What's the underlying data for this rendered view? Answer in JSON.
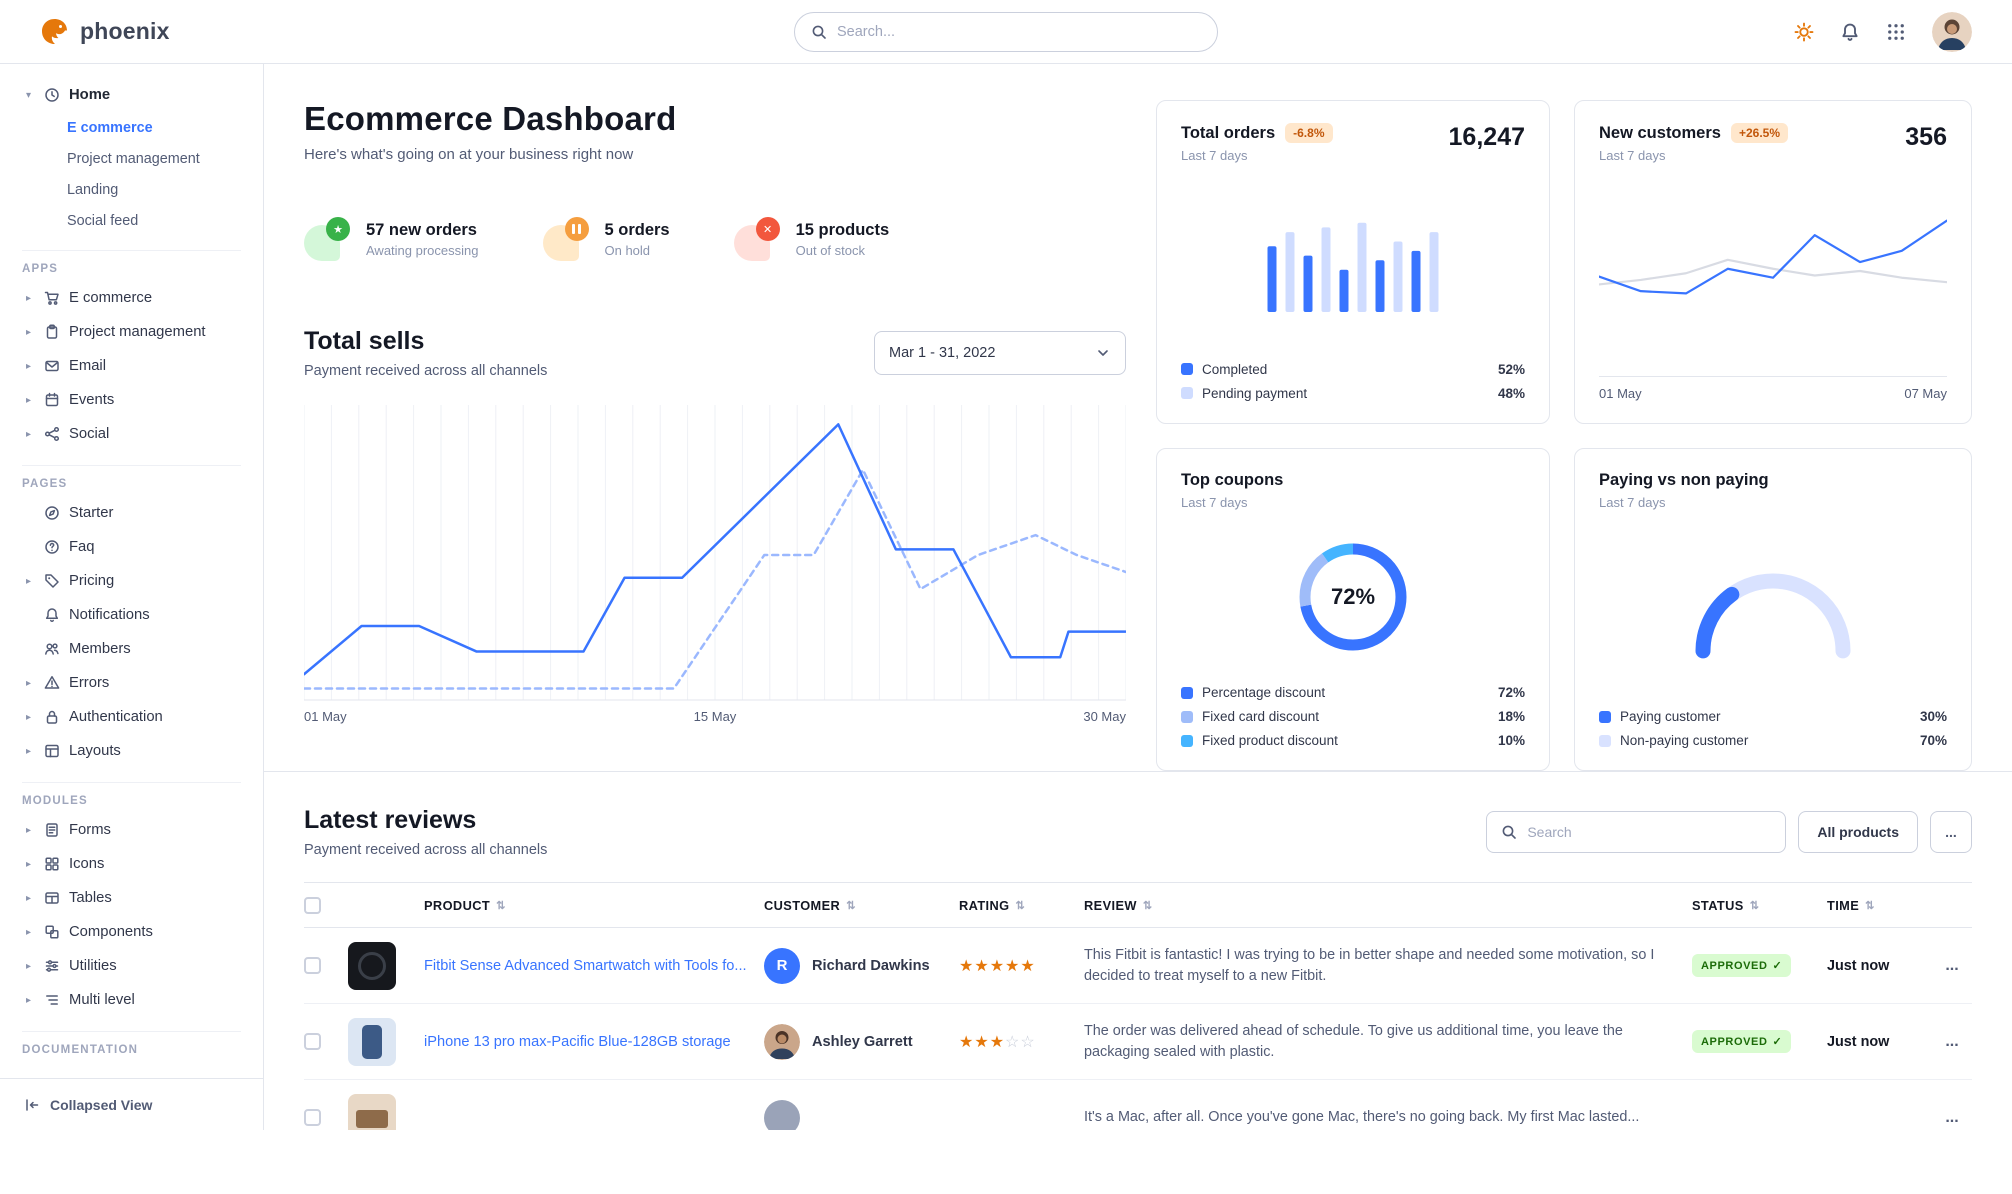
{
  "theme": {
    "primary": "#3874ff",
    "warning_badge_bg": "#ffe7cc",
    "warning_badge_text": "#c2570b",
    "success_badge_bg": "#d9fbd0",
    "success_badge_text": "#1c6c09",
    "star_color": "#e5780b"
  },
  "topbar": {
    "brand": "phoenix",
    "search_placeholder": "Search..."
  },
  "sidebar": {
    "home": {
      "label": "Home",
      "children": [
        {
          "label": "E commerce"
        },
        {
          "label": "Project management"
        },
        {
          "label": "Landing"
        },
        {
          "label": "Social feed"
        }
      ]
    },
    "sections": [
      {
        "title": "APPS",
        "items": [
          {
            "label": "E commerce"
          },
          {
            "label": "Project management"
          },
          {
            "label": "Email"
          },
          {
            "label": "Events"
          },
          {
            "label": "Social"
          }
        ]
      },
      {
        "title": "PAGES",
        "items": [
          {
            "label": "Starter"
          },
          {
            "label": "Faq"
          },
          {
            "label": "Pricing"
          },
          {
            "label": "Notifications"
          },
          {
            "label": "Members"
          },
          {
            "label": "Errors"
          },
          {
            "label": "Authentication"
          },
          {
            "label": "Layouts"
          }
        ]
      },
      {
        "title": "MODULES",
        "items": [
          {
            "label": "Forms"
          },
          {
            "label": "Icons"
          },
          {
            "label": "Tables"
          },
          {
            "label": "Components"
          },
          {
            "label": "Utilities"
          },
          {
            "label": "Multi level"
          }
        ]
      },
      {
        "title": "DOCUMENTATION",
        "items": []
      }
    ],
    "collapsed_view_label": "Collapsed View"
  },
  "header": {
    "title": "Ecommerce Dashboard",
    "subtitle": "Here's what's going on at your business right now"
  },
  "stats": [
    {
      "value": "57 new orders",
      "caption": "Awating processing"
    },
    {
      "value": "5 orders",
      "caption": "On hold"
    },
    {
      "value": "15 products",
      "caption": "Out of stock"
    }
  ],
  "total_sells": {
    "title": "Total sells",
    "subtitle": "Payment received across all channels",
    "range_selector": "Mar 1 - 31, 2022",
    "x_labels": [
      "01 May",
      "15 May",
      "30 May"
    ]
  },
  "cards": {
    "total_orders": {
      "title": "Total orders",
      "badge": "-6.8%",
      "period": "Last 7 days",
      "value": "16,247",
      "legend": [
        {
          "label": "Completed",
          "value": "52%",
          "color": "#3874ff"
        },
        {
          "label": "Pending payment",
          "value": "48%",
          "color": "#cfdcff"
        }
      ]
    },
    "new_customers": {
      "title": "New customers",
      "badge": "+26.5%",
      "period": "Last 7 days",
      "value": "356",
      "x_labels": [
        "01 May",
        "07 May"
      ]
    },
    "top_coupons": {
      "title": "Top coupons",
      "period": "Last 7 days",
      "center_label": "72%",
      "legend": [
        {
          "label": "Percentage discount",
          "value": "72%",
          "color": "#3874ff"
        },
        {
          "label": "Fixed card discount",
          "value": "18%",
          "color": "#9fbcf9"
        },
        {
          "label": "Fixed product discount",
          "value": "10%",
          "color": "#45b4ff"
        }
      ]
    },
    "paying": {
      "title": "Paying vs non paying",
      "period": "Last 7 days",
      "legend": [
        {
          "label": "Paying customer",
          "value": "30%",
          "color": "#3874ff"
        },
        {
          "label": "Non-paying customer",
          "value": "70%",
          "color": "#d9e2ff"
        }
      ]
    }
  },
  "chart_data": {
    "total_sells": {
      "type": "line",
      "title": "Total sells",
      "x_labels": [
        "01 May",
        "15 May",
        "30 May"
      ],
      "grid": true,
      "series": [
        {
          "name": "previous period",
          "style": "dashed",
          "color": "#9bb8fe",
          "points": [
            [
              0,
              3
            ],
            [
              20,
              3
            ],
            [
              45,
              3
            ],
            [
              56,
              50
            ],
            [
              62,
              50
            ],
            [
              68,
              80
            ],
            [
              75,
              38
            ],
            [
              82,
              50
            ],
            [
              89,
              57
            ],
            [
              94,
              50
            ],
            [
              100,
              44
            ]
          ]
        },
        {
          "name": "current period",
          "style": "solid",
          "color": "#3874ff",
          "points": [
            [
              0,
              8
            ],
            [
              7,
              25
            ],
            [
              14,
              25
            ],
            [
              21,
              16
            ],
            [
              34,
              16
            ],
            [
              39,
              42
            ],
            [
              46,
              42
            ],
            [
              65,
              96
            ],
            [
              72,
              52
            ],
            [
              79,
              52
            ],
            [
              86,
              14
            ],
            [
              92,
              14
            ],
            [
              93,
              23
            ],
            [
              100,
              23
            ]
          ]
        }
      ]
    },
    "total_orders_bars": {
      "type": "bar",
      "values": [
        70,
        85,
        60,
        90,
        45,
        95,
        55,
        75,
        65,
        85
      ],
      "colors": [
        "#3874ff",
        "#cfdcff"
      ],
      "completed_pct": 52,
      "pending_pct": 48
    },
    "new_customers_line": {
      "type": "line",
      "x_labels": [
        "01 May",
        "07 May"
      ],
      "series": [
        {
          "name": "previous",
          "style": "solid",
          "color": "#d8dbe3",
          "points": [
            [
              0,
              38
            ],
            [
              12,
              42
            ],
            [
              25,
              48
            ],
            [
              37,
              60
            ],
            [
              50,
              52
            ],
            [
              62,
              46
            ],
            [
              75,
              50
            ],
            [
              87,
              44
            ],
            [
              100,
              40
            ]
          ]
        },
        {
          "name": "current",
          "style": "solid",
          "color": "#3874ff",
          "points": [
            [
              0,
              45
            ],
            [
              12,
              32
            ],
            [
              25,
              30
            ],
            [
              37,
              52
            ],
            [
              50,
              44
            ],
            [
              62,
              82
            ],
            [
              75,
              58
            ],
            [
              87,
              68
            ],
            [
              100,
              95
            ]
          ]
        }
      ]
    },
    "top_coupons_donut": {
      "type": "pie",
      "center_label": "72%",
      "segments": [
        {
          "label": "Percentage discount",
          "value": 72,
          "color": "#3874ff"
        },
        {
          "label": "Fixed card discount",
          "value": 18,
          "color": "#9fbcf9"
        },
        {
          "label": "Fixed product discount",
          "value": 10,
          "color": "#45b4ff"
        }
      ]
    },
    "paying_gauge": {
      "type": "gauge",
      "segments": [
        {
          "label": "Paying customer",
          "value": 30,
          "color": "#3874ff"
        },
        {
          "label": "Non-paying customer",
          "value": 70,
          "color": "#d9e2ff"
        }
      ]
    }
  },
  "reviews": {
    "title": "Latest reviews",
    "subtitle": "Payment received across all channels",
    "search_placeholder": "Search",
    "all_products_label": "All products",
    "more_label": "...",
    "columns": {
      "product": "PRODUCT",
      "customer": "CUSTOMER",
      "rating": "RATING",
      "review": "REVIEW",
      "status": "STATUS",
      "time": "TIME"
    },
    "rows": [
      {
        "product": "Fitbit Sense Advanced Smartwatch with Tools fo...",
        "customer": "Richard Dawkins",
        "customer_initial": "R",
        "rating": 5,
        "review": "This Fitbit is fantastic! I was trying to be in better shape and needed some motivation, so I decided to treat myself to a new Fitbit.",
        "status": "APPROVED",
        "time": "Just now"
      },
      {
        "product": "iPhone 13 pro max-Pacific Blue-128GB storage",
        "customer": "Ashley Garrett",
        "customer_initial": "",
        "rating": 3,
        "review": "The order was delivered ahead of schedule. To give us additional time, you leave the packaging sealed with plastic.",
        "status": "APPROVED",
        "time": "Just now"
      },
      {
        "product": "",
        "customer": "",
        "customer_initial": "",
        "rating": 0,
        "review": "It's a Mac, after all. Once you've gone Mac, there's no going back. My first Mac lasted...",
        "status": "",
        "time": ""
      }
    ]
  }
}
